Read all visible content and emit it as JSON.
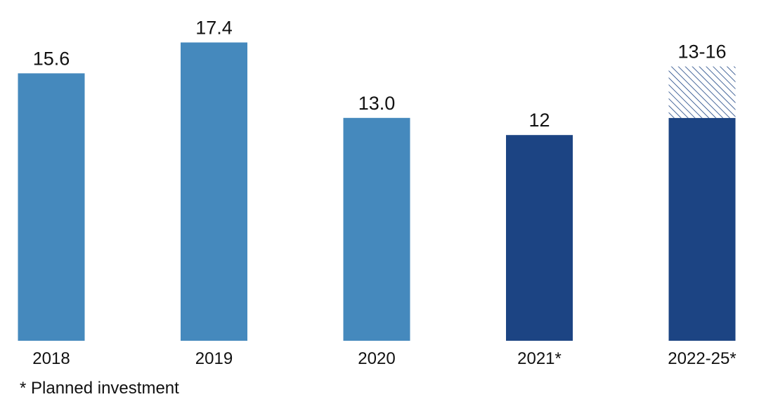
{
  "chart_data": {
    "type": "bar",
    "title": "",
    "xlabel": "",
    "ylabel": "",
    "ylim": [
      0,
      20
    ],
    "grid": false,
    "categories": [
      "2018",
      "2019",
      "2020",
      "2021*",
      "2022-25*"
    ],
    "bars": [
      {
        "category": "2018",
        "value": 15.6,
        "label": "15.6",
        "kind": "actual"
      },
      {
        "category": "2019",
        "value": 17.4,
        "label": "17.4",
        "kind": "actual"
      },
      {
        "category": "2020",
        "value": 13.0,
        "label": "13.0",
        "kind": "actual"
      },
      {
        "category": "2021*",
        "value": 12,
        "label": "12",
        "kind": "planned"
      },
      {
        "category": "2022-25*",
        "value": 13,
        "upper": 16,
        "label": "13-16",
        "kind": "planned-range"
      }
    ],
    "colors": {
      "actual": "#4589bd",
      "planned": "#1c4483",
      "hatch": "#1c4483"
    },
    "footnote": "* Planned investment"
  }
}
